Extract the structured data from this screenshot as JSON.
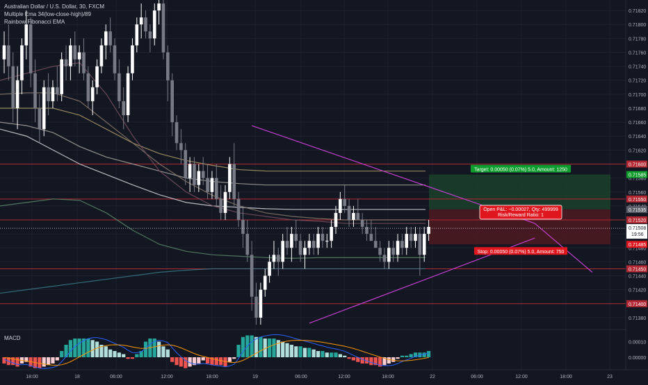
{
  "legend": {
    "symbol": "Australian Dollar / U.S. Dollar, 30, FXCM",
    "indicator1": "Multiple Ema 34(low-close-high)/89",
    "indicator2": "Rainbow Fibonacci EMA"
  },
  "macd_label": "MACD",
  "colors": {
    "background": "#131722",
    "candle_up": "#ffffff",
    "candle_down": "#787b86",
    "trendline": "#c43fd1",
    "level_line": "#b22833",
    "target_zone": "#1b3d2a",
    "stop_zone": "#4a1a20",
    "target_label": "#0f9d2e",
    "stop_label": "#e0161f",
    "macd_pos_strong": "#26a69a",
    "macd_pos_weak": "#b2dfdb",
    "macd_neg_strong": "#ef5350",
    "macd_neg_weak": "#ffcdd2",
    "macd_line": "#2962ff",
    "signal_line": "#ff9800"
  },
  "chart_data": {
    "type": "candlestick",
    "y_axis": {
      "ylim": [
        0.71365,
        0.71835
      ],
      "ticks": [
        "0.71820",
        "0.71800",
        "0.71780",
        "0.71760",
        "0.71740",
        "0.71720",
        "0.71700",
        "0.71680",
        "0.71660",
        "0.71640",
        "0.71620",
        "0.71600",
        "0.71580",
        "0.71560",
        "0.71540",
        "0.71520",
        "0.71500",
        "0.71480",
        "0.71460",
        "0.71440",
        "0.71420",
        "0.71400",
        "0.71380"
      ]
    },
    "x_axis": {
      "ticks": [
        "18:00",
        "18",
        "06:00",
        "12:00",
        "18:00",
        "19",
        "06:00",
        "12:00",
        "18:00",
        "22",
        "06:00",
        "12:00",
        "18:00",
        "23"
      ]
    },
    "candles_ohlc": [
      [
        0.7175,
        0.7179,
        0.7173,
        0.7177
      ],
      [
        0.7177,
        0.718,
        0.7172,
        0.7174
      ],
      [
        0.7174,
        0.7176,
        0.7166,
        0.7168
      ],
      [
        0.7168,
        0.7174,
        0.7165,
        0.7172
      ],
      [
        0.7172,
        0.7178,
        0.717,
        0.7177
      ],
      [
        0.7177,
        0.7182,
        0.7175,
        0.718
      ],
      [
        0.718,
        0.7181,
        0.7171,
        0.7173
      ],
      [
        0.7173,
        0.7175,
        0.7166,
        0.7168
      ],
      [
        0.7168,
        0.717,
        0.7163,
        0.7165
      ],
      [
        0.7165,
        0.7172,
        0.7164,
        0.7171
      ],
      [
        0.7171,
        0.7173,
        0.7167,
        0.7169
      ],
      [
        0.7169,
        0.7172,
        0.7168,
        0.7171
      ],
      [
        0.7171,
        0.7174,
        0.7169,
        0.717
      ],
      [
        0.717,
        0.7176,
        0.7169,
        0.7175
      ],
      [
        0.7175,
        0.7177,
        0.7172,
        0.7174
      ],
      [
        0.7174,
        0.7178,
        0.7172,
        0.7177
      ],
      [
        0.7177,
        0.7179,
        0.7174,
        0.7175
      ],
      [
        0.7175,
        0.7177,
        0.7173,
        0.7176
      ],
      [
        0.7176,
        0.7178,
        0.7172,
        0.7173
      ],
      [
        0.7173,
        0.7174,
        0.7168,
        0.7169
      ],
      [
        0.7169,
        0.7172,
        0.7167,
        0.7171
      ],
      [
        0.7171,
        0.7175,
        0.717,
        0.7174
      ],
      [
        0.7174,
        0.7178,
        0.7173,
        0.7177
      ],
      [
        0.7177,
        0.718,
        0.7175,
        0.7179
      ],
      [
        0.7179,
        0.7181,
        0.7176,
        0.7177
      ],
      [
        0.7177,
        0.7178,
        0.7172,
        0.7173
      ],
      [
        0.7173,
        0.7175,
        0.7168,
        0.7169
      ],
      [
        0.7169,
        0.7171,
        0.7165,
        0.7167
      ],
      [
        0.7167,
        0.7174,
        0.7166,
        0.7173
      ],
      [
        0.7173,
        0.7178,
        0.7172,
        0.7177
      ],
      [
        0.7177,
        0.7181,
        0.7176,
        0.718
      ],
      [
        0.718,
        0.7183,
        0.7178,
        0.7181
      ],
      [
        0.7181,
        0.7182,
        0.7178,
        0.7179
      ],
      [
        0.7179,
        0.718,
        0.7176,
        0.7178
      ],
      [
        0.7178,
        0.7183,
        0.7177,
        0.7182
      ],
      [
        0.7182,
        0.7184,
        0.718,
        0.7183
      ],
      [
        0.7183,
        0.7184,
        0.7175,
        0.7176
      ],
      [
        0.7176,
        0.7177,
        0.7169,
        0.7172
      ],
      [
        0.7172,
        0.7173,
        0.7164,
        0.7166
      ],
      [
        0.7166,
        0.7167,
        0.7162,
        0.7163
      ],
      [
        0.7163,
        0.7165,
        0.716,
        0.7162
      ],
      [
        0.7162,
        0.7163,
        0.7157,
        0.7158
      ],
      [
        0.7158,
        0.7161,
        0.7156,
        0.716
      ],
      [
        0.716,
        0.7161,
        0.7156,
        0.7157
      ],
      [
        0.7157,
        0.716,
        0.7156,
        0.7159
      ],
      [
        0.7159,
        0.7161,
        0.7157,
        0.7158
      ],
      [
        0.7158,
        0.716,
        0.7155,
        0.7156
      ],
      [
        0.7156,
        0.7159,
        0.7155,
        0.7158
      ],
      [
        0.7158,
        0.716,
        0.7154,
        0.7155
      ],
      [
        0.7155,
        0.7157,
        0.7152,
        0.7153
      ],
      [
        0.7153,
        0.7157,
        0.7152,
        0.7156
      ],
      [
        0.7156,
        0.7161,
        0.7155,
        0.716
      ],
      [
        0.716,
        0.7163,
        0.7154,
        0.7155
      ],
      [
        0.7155,
        0.7156,
        0.7151,
        0.7152
      ],
      [
        0.7152,
        0.7154,
        0.7148,
        0.715
      ],
      [
        0.715,
        0.7152,
        0.7146,
        0.7147
      ],
      [
        0.7147,
        0.7149,
        0.7139,
        0.7141
      ],
      [
        0.7141,
        0.7143,
        0.7137,
        0.7138
      ],
      [
        0.7138,
        0.7143,
        0.7137,
        0.7142
      ],
      [
        0.7142,
        0.7145,
        0.7141,
        0.7144
      ],
      [
        0.7144,
        0.7147,
        0.7143,
        0.7146
      ],
      [
        0.7146,
        0.7149,
        0.7145,
        0.7147
      ],
      [
        0.7147,
        0.7148,
        0.7144,
        0.7146
      ],
      [
        0.7146,
        0.715,
        0.7145,
        0.7149
      ],
      [
        0.7149,
        0.7151,
        0.7147,
        0.7148
      ],
      [
        0.7148,
        0.7151,
        0.7146,
        0.715
      ],
      [
        0.715,
        0.7152,
        0.7148,
        0.7149
      ],
      [
        0.7149,
        0.715,
        0.7146,
        0.7147
      ],
      [
        0.7147,
        0.7149,
        0.7145,
        0.7148
      ],
      [
        0.7148,
        0.715,
        0.7147,
        0.7149
      ],
      [
        0.7149,
        0.715,
        0.7147,
        0.7148
      ],
      [
        0.7148,
        0.7151,
        0.7147,
        0.715
      ],
      [
        0.715,
        0.7151,
        0.7148,
        0.7149
      ],
      [
        0.7149,
        0.715,
        0.7148,
        0.7149
      ],
      [
        0.7149,
        0.7152,
        0.7148,
        0.7151
      ],
      [
        0.7151,
        0.7154,
        0.715,
        0.7153
      ],
      [
        0.7153,
        0.7156,
        0.7152,
        0.7155
      ],
      [
        0.7155,
        0.7157,
        0.7153,
        0.7154
      ],
      [
        0.7154,
        0.7155,
        0.7151,
        0.7152
      ],
      [
        0.7152,
        0.7154,
        0.7151,
        0.7153
      ],
      [
        0.7153,
        0.7155,
        0.7152,
        0.7152
      ],
      [
        0.7152,
        0.7153,
        0.715,
        0.7151
      ],
      [
        0.7151,
        0.7152,
        0.7149,
        0.715
      ],
      [
        0.715,
        0.7152,
        0.7149,
        0.7149
      ],
      [
        0.7149,
        0.7151,
        0.7148,
        0.7148
      ],
      [
        0.7148,
        0.7149,
        0.7146,
        0.7147
      ],
      [
        0.7147,
        0.7148,
        0.7145,
        0.7146
      ],
      [
        0.7146,
        0.7149,
        0.7145,
        0.7148
      ],
      [
        0.7148,
        0.7149,
        0.7146,
        0.7147
      ],
      [
        0.7147,
        0.715,
        0.7146,
        0.7149
      ],
      [
        0.7149,
        0.715,
        0.7147,
        0.7148
      ],
      [
        0.7148,
        0.7151,
        0.7147,
        0.715
      ],
      [
        0.715,
        0.7151,
        0.7148,
        0.7149
      ],
      [
        0.7149,
        0.7151,
        0.7148,
        0.715
      ],
      [
        0.715,
        0.7151,
        0.7144,
        0.7147
      ],
      [
        0.7147,
        0.7151,
        0.7146,
        0.715
      ],
      [
        0.715,
        0.7152,
        0.7149,
        0.7151
      ]
    ],
    "horizontal_levels": [
      0.716,
      0.7155,
      0.7152,
      0.7145,
      0.714
    ],
    "current_price": {
      "value": 0.71508,
      "label": "0.71508",
      "countdown": "19:56"
    },
    "price_tags": [
      {
        "value": 0.716,
        "label": "0.71600",
        "color": "#b22833"
      },
      {
        "value": 0.71585,
        "label": "0.71585",
        "color": "#0f9d2e"
      },
      {
        "value": 0.7155,
        "label": "0.71550",
        "color": "#b22833"
      },
      {
        "value": 0.71535,
        "label": "0.71535",
        "color": "#5d606b"
      },
      {
        "value": 0.7152,
        "label": "0.71520",
        "color": "#b22833"
      },
      {
        "value": 0.71485,
        "label": "0.71485",
        "color": "#e0161f"
      },
      {
        "value": 0.7145,
        "label": "0.71450",
        "color": "#b22833"
      },
      {
        "value": 0.714,
        "label": "0.71400",
        "color": "#b22833"
      }
    ],
    "position": {
      "entry": 0.71535,
      "target": 0.71585,
      "stop": 0.71485,
      "target_label": "Target: 0.00050 (0.07%) 5.0, Amount: 1250",
      "stop_label": "Stop: 0.00050 (0.07%) 5.0, Amount: 750",
      "pnl_label": "Open P&L: −0.00027, Qty: 499999",
      "rr_label": "Risk/Reward Ratio: 1"
    },
    "trendlines": [
      {
        "from": [
          56,
          0.71655
        ],
        "to": [
          120,
          0.71515
        ]
      },
      {
        "from": [
          69,
          0.71372
        ],
        "to": [
          120,
          0.71494
        ]
      },
      {
        "from": [
          120,
          0.71515
        ],
        "to": [
          133,
          0.71445
        ]
      }
    ],
    "emas": [
      {
        "color": "#d8d8dc",
        "values": [
          0.7165,
          0.7164,
          0.7162,
          0.716,
          0.71585,
          0.7157,
          0.71556,
          0.71545,
          0.7154,
          0.71538,
          0.71536,
          0.71535,
          0.71535,
          0.71535,
          0.71535,
          0.71535,
          0.71535
        ]
      },
      {
        "color": "#a8a6a0",
        "values": [
          0.7166,
          0.71655,
          0.71645,
          0.71625,
          0.7161,
          0.716,
          0.7159,
          0.7158,
          0.71575,
          0.71572,
          0.7157,
          0.7157,
          0.7157,
          0.7157,
          0.7157,
          0.7157,
          0.7157
        ]
      },
      {
        "color": "#b09a6a",
        "values": [
          0.7168,
          0.7168,
          0.7168,
          0.7167,
          0.7165,
          0.7163,
          0.71615,
          0.71605,
          0.71598,
          0.71592,
          0.7159,
          0.7159,
          0.7159,
          0.7159,
          0.7159,
          0.7159,
          0.7159
        ]
      },
      {
        "color": "#8a7a6a",
        "values": [
          0.717,
          0.71702,
          0.71702,
          0.7169,
          0.7166,
          0.7163,
          0.716,
          0.71575,
          0.71555,
          0.7154,
          0.7153,
          0.71525,
          0.71522,
          0.7152,
          0.7152,
          0.7152,
          0.7152
        ]
      },
      {
        "color": "#7a5060",
        "values": [
          0.7172,
          0.7173,
          0.7174,
          0.71745,
          0.717,
          0.7164,
          0.7159,
          0.7156,
          0.7154,
          0.7153,
          0.71525,
          0.7152,
          0.71518,
          0.71515,
          0.71515,
          0.71515,
          0.71515
        ]
      },
      {
        "color": "#5b8a6a",
        "values": [
          0.7154,
          0.71545,
          0.7155,
          0.71548,
          0.7153,
          0.71505,
          0.71485,
          0.71475,
          0.7147,
          0.71468,
          0.71466,
          0.71465,
          0.71466,
          0.71466,
          0.71466,
          0.71466,
          0.71466
        ]
      },
      {
        "color": "#3a7a8a",
        "values": [
          0.71415,
          0.7142,
          0.71425,
          0.7143,
          0.71435,
          0.7144,
          0.71445,
          0.71448,
          0.7145,
          0.7145,
          0.7145,
          0.7145,
          0.7145,
          0.7145,
          0.7145,
          0.7145,
          0.7145
        ]
      }
    ],
    "macd": {
      "ticks": [
        "0.00010",
        "0.00000"
      ],
      "ylim": [
        -8e-05,
        0.00016
      ],
      "histogram": [
        -4e-05,
        -5e-05,
        -5e-05,
        -6e-05,
        -4e-05,
        -3e-05,
        -6e-05,
        -7e-05,
        -7e-05,
        -6e-05,
        -5e-05,
        -4e-05,
        -2e-05,
        4e-05,
        8e-05,
        0.00011,
        0.00012,
        0.00012,
        0.00012,
        0.00012,
        0.00011,
        0.0001,
        8e-05,
        7e-05,
        5e-05,
        4e-05,
        3e-05,
        2e-05,
        -1e-05,
        -1e-05,
        2e-05,
        4e-05,
        0.0001,
        0.00012,
        0.00012,
        0.0001,
        7e-05,
        5e-05,
        -3e-05,
        -5e-05,
        -6e-05,
        -7e-05,
        -6e-05,
        -5e-05,
        -4e-05,
        -2e-05,
        -4e-05,
        -5e-05,
        -5e-05,
        -5e-05,
        -6e-05,
        -3e-05,
        -1e-05,
        8e-05,
        0.00013,
        0.00014,
        0.00014,
        0.00013,
        0.00013,
        0.00012,
        0.00012,
        0.00012,
        0.00011,
        0.0001,
        9e-05,
        8e-05,
        7e-05,
        7e-05,
        6e-05,
        6e-05,
        5e-05,
        4e-05,
        4e-05,
        3e-05,
        3e-05,
        3e-05,
        2e-05,
        1e-05,
        -1e-05,
        -2e-05,
        -3e-05,
        -4e-05,
        -4e-05,
        -5e-05,
        -5e-05,
        -6e-05,
        -5e-05,
        -4e-05,
        -3e-05,
        -1e-05,
        1e-05,
        1e-05,
        2e-05,
        3e-05,
        3e-05,
        3e-05,
        4e-05
      ]
    },
    "annotations": [
      "Target: 0.00050 (0.07%) 5.0, Amount: 1250",
      "Stop: 0.00050 (0.07%) 5.0, Amount: 750",
      "Open P&L: −0.00027, Qty: 499999",
      "Risk/Reward Ratio: 1"
    ]
  }
}
